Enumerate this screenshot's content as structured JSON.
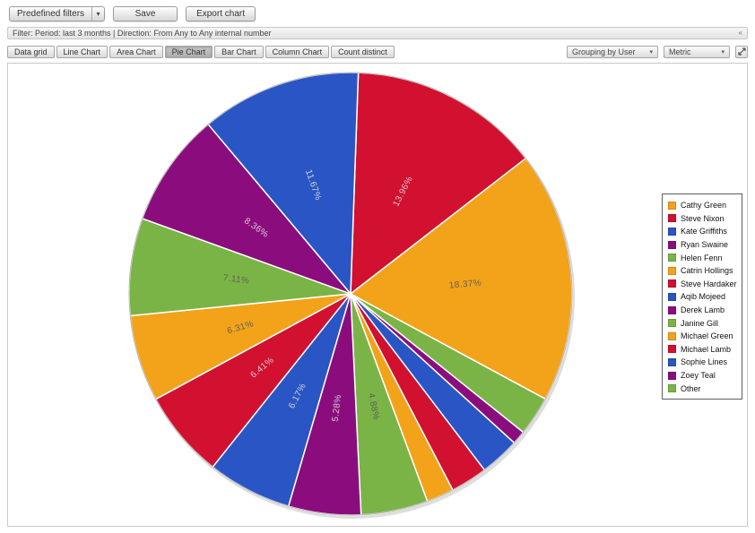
{
  "toolbar": {
    "predefined_filters_label": "Predefined filters",
    "predefined_filters_caret": "▾",
    "save_label": "Save",
    "export_label": "Export chart"
  },
  "filter_bar": {
    "text": "Filter: Period: last 3 months | Direction: From Any to Any internal number",
    "collapse_glyph": "«"
  },
  "tabs": [
    {
      "label": "Data grid",
      "selected": false
    },
    {
      "label": "Line Chart",
      "selected": false
    },
    {
      "label": "Area Chart",
      "selected": false
    },
    {
      "label": "Pie Chart",
      "selected": true
    },
    {
      "label": "Bar Chart",
      "selected": false
    },
    {
      "label": "Column Chart",
      "selected": false
    },
    {
      "label": "Count distinct",
      "selected": false
    }
  ],
  "controls": {
    "grouping_select": "Grouping by User",
    "metric_select": "Metric",
    "caret_glyph": "▾"
  },
  "chart_data": {
    "type": "pie",
    "title": "",
    "legend_position": "right",
    "label_format": "percent",
    "colors": {
      "orange": "#F2A31A",
      "red": "#D21030",
      "blue": "#2A55C4",
      "purple": "#8B0D7D",
      "green": "#7AB446",
      "label_dark": "#5a5a5a",
      "label_light": "#dcdcdc"
    },
    "slices": [
      {
        "name": "Cathy Green",
        "value": 18.37,
        "color": "#F2A31A",
        "label_color": "#5a5a5a",
        "label_visible": true
      },
      {
        "name": "Steve Nixon",
        "value": 13.96,
        "color": "#D21030",
        "label_color": "#dcdcdc",
        "label_visible": true
      },
      {
        "name": "Kate Griffiths",
        "value": 11.67,
        "color": "#2A55C4",
        "label_color": "#dcdcdc",
        "label_visible": true
      },
      {
        "name": "Ryan Swaine",
        "value": 8.36,
        "color": "#8B0D7D",
        "label_color": "#dcdcdc",
        "label_visible": true
      },
      {
        "name": "Helen Fenn",
        "value": 7.11,
        "color": "#7AB446",
        "label_color": "#5a5a5a",
        "label_visible": true
      },
      {
        "name": "Catrin Hollings",
        "value": 6.31,
        "color": "#F2A31A",
        "label_color": "#5a5a5a",
        "label_visible": true
      },
      {
        "name": "Steve Hardaker",
        "value": 6.41,
        "color": "#D21030",
        "label_color": "#dcdcdc",
        "label_visible": true
      },
      {
        "name": "Aqib Mojeed",
        "value": 6.17,
        "color": "#2A55C4",
        "label_color": "#dcdcdc",
        "label_visible": true
      },
      {
        "name": "Derek Lamb",
        "value": 5.28,
        "color": "#8B0D7D",
        "label_color": "#dcdcdc",
        "label_visible": true
      },
      {
        "name": "Janine Gill",
        "value": 4.88,
        "color": "#7AB446",
        "label_color": "#5a5a5a",
        "label_visible": true
      },
      {
        "name": "Michael Green",
        "value": 2.0,
        "color": "#F2A31A",
        "label_color": "#5a5a5a",
        "label_visible": false
      },
      {
        "name": "Michael Lamb",
        "value": 2.7,
        "color": "#D21030",
        "label_color": "#dcdcdc",
        "label_visible": false
      },
      {
        "name": "Sophie Lines",
        "value": 2.9,
        "color": "#2A55C4",
        "label_color": "#dcdcdc",
        "label_visible": false
      },
      {
        "name": "Zoey Teal",
        "value": 1.0,
        "color": "#8B0D7D",
        "label_color": "#dcdcdc",
        "label_visible": false
      },
      {
        "name": "Other",
        "value": 2.88,
        "color": "#7AB446",
        "label_color": "#5a5a5a",
        "label_visible": false
      }
    ],
    "render": {
      "start_angle_deg": 2,
      "direction": "clockwise",
      "order": [
        1,
        0,
        14,
        13,
        12,
        11,
        10,
        9,
        8,
        7,
        6,
        5,
        4,
        3,
        2
      ],
      "radius": 247,
      "label_radius_ratio": 0.52
    }
  }
}
